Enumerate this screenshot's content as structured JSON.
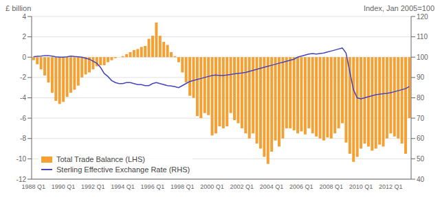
{
  "chart_data": {
    "type": "bar",
    "ylabel": "£ billion",
    "y2label": "Index, Jan 2005=100",
    "categories": [
      "1988 Q1",
      null,
      null,
      null,
      null,
      null,
      null,
      null,
      "1990 Q1",
      null,
      null,
      null,
      null,
      null,
      null,
      null,
      "1992 Q1",
      null,
      null,
      null,
      null,
      null,
      null,
      null,
      "1994 Q1",
      null,
      null,
      null,
      null,
      null,
      null,
      null,
      "1996 Q1",
      null,
      null,
      null,
      null,
      null,
      null,
      null,
      "1998 Q1",
      null,
      null,
      null,
      null,
      null,
      null,
      null,
      "2000 Q1",
      null,
      null,
      null,
      null,
      null,
      null,
      null,
      "2002 Q1",
      null,
      null,
      null,
      null,
      null,
      null,
      null,
      "2004 Q1",
      null,
      null,
      null,
      null,
      null,
      null,
      null,
      "2006 Q1",
      null,
      null,
      null,
      null,
      null,
      null,
      null,
      "2008 Q1",
      null,
      null,
      null,
      null,
      null,
      null,
      null,
      "2010 Q1",
      null,
      null,
      null,
      null,
      null,
      null,
      null,
      "2012 Q1",
      null,
      null,
      null,
      null,
      null
    ],
    "series": [
      {
        "name": "Total Trade Balance (LHS)",
        "type": "bar",
        "color": "#F5A033",
        "values": [
          -0.3,
          -0.7,
          -1.2,
          -1.8,
          -2.5,
          -3.5,
          -4.3,
          -4.6,
          -4.4,
          -3.9,
          -3.5,
          -3.2,
          -2.8,
          -2.0,
          -1.7,
          -1.5,
          -1.2,
          -0.9,
          -0.8,
          -0.8,
          -0.5,
          -0.3,
          -0.1,
          0.0,
          0.1,
          0.3,
          0.5,
          0.7,
          0.8,
          1.0,
          1.1,
          1.8,
          2.1,
          3.4,
          2.1,
          1.5,
          1.2,
          0.5,
          0.1,
          -0.5,
          -1.5,
          -2.5,
          -3.8,
          -4.0,
          -5.8,
          -6.0,
          -5.5,
          -5.7,
          -7.7,
          -7.5,
          -6.8,
          -7.0,
          -6.8,
          -5.5,
          -6.2,
          -6.5,
          -7.0,
          -7.5,
          -8.0,
          -7.5,
          -8.5,
          -9.0,
          -9.8,
          -10.5,
          -9.3,
          -8.2,
          -8.8,
          -8.0,
          -7.0,
          -7.0,
          -7.2,
          -7.5,
          -7.3,
          -7.6,
          -7.0,
          -7.5,
          -7.8,
          -8.0,
          -8.2,
          -7.9,
          -8.0,
          -7.5,
          -7.0,
          -6.5,
          -8.4,
          -9.5,
          -10.3,
          -9.8,
          -9.0,
          -8.5,
          -8.8,
          -9.2,
          -9.0,
          -8.6,
          -8.8,
          -8.0,
          -7.5,
          -7.8,
          -8.0,
          -8.5,
          -9.5,
          -6.0
        ]
      },
      {
        "name": "Sterling Effective Exchange Rate (RHS)",
        "type": "line",
        "color": "#4444BB",
        "axis": "y2",
        "values": [
          100.2,
          100.4,
          100.5,
          100.8,
          100.8,
          100.5,
          100.2,
          100.0,
          100.0,
          100.2,
          100.5,
          100.3,
          100.2,
          100.0,
          99.5,
          99.0,
          98.0,
          97.0,
          95.0,
          92.0,
          90.5,
          88.5,
          87.5,
          87.0,
          87.0,
          87.5,
          87.5,
          87.0,
          86.5,
          86.5,
          86.0,
          86.0,
          87.0,
          87.5,
          87.0,
          86.5,
          86.0,
          85.8,
          85.5,
          85.0,
          86.0,
          87.0,
          88.0,
          88.5,
          89.0,
          89.5,
          90.0,
          90.5,
          91.0,
          91.2,
          91.0,
          91.0,
          91.2,
          91.5,
          91.8,
          92.0,
          92.2,
          92.5,
          93.0,
          93.5,
          94.0,
          94.5,
          95.0,
          95.5,
          96.0,
          96.5,
          97.0,
          97.5,
          98.0,
          98.5,
          99.0,
          100.0,
          100.5,
          101.0,
          101.5,
          101.8,
          101.5,
          101.8,
          102.0,
          102.5,
          103.0,
          103.5,
          104.0,
          104.5,
          102.0,
          93.0,
          84.0,
          80.0,
          79.5,
          80.0,
          80.5,
          81.0,
          81.5,
          81.8,
          82.0,
          82.2,
          82.5,
          83.0,
          83.5,
          84.0,
          84.5,
          85.5
        ]
      }
    ],
    "ylim": [
      -12,
      4
    ],
    "yticks": [
      -12,
      -10,
      -8,
      -6,
      -4,
      -2,
      0,
      2,
      4
    ],
    "y2lim": [
      40,
      120
    ],
    "y2ticks": [
      40,
      50,
      60,
      70,
      80,
      90,
      100,
      110,
      120
    ],
    "grid": true,
    "legend": "lower left"
  }
}
